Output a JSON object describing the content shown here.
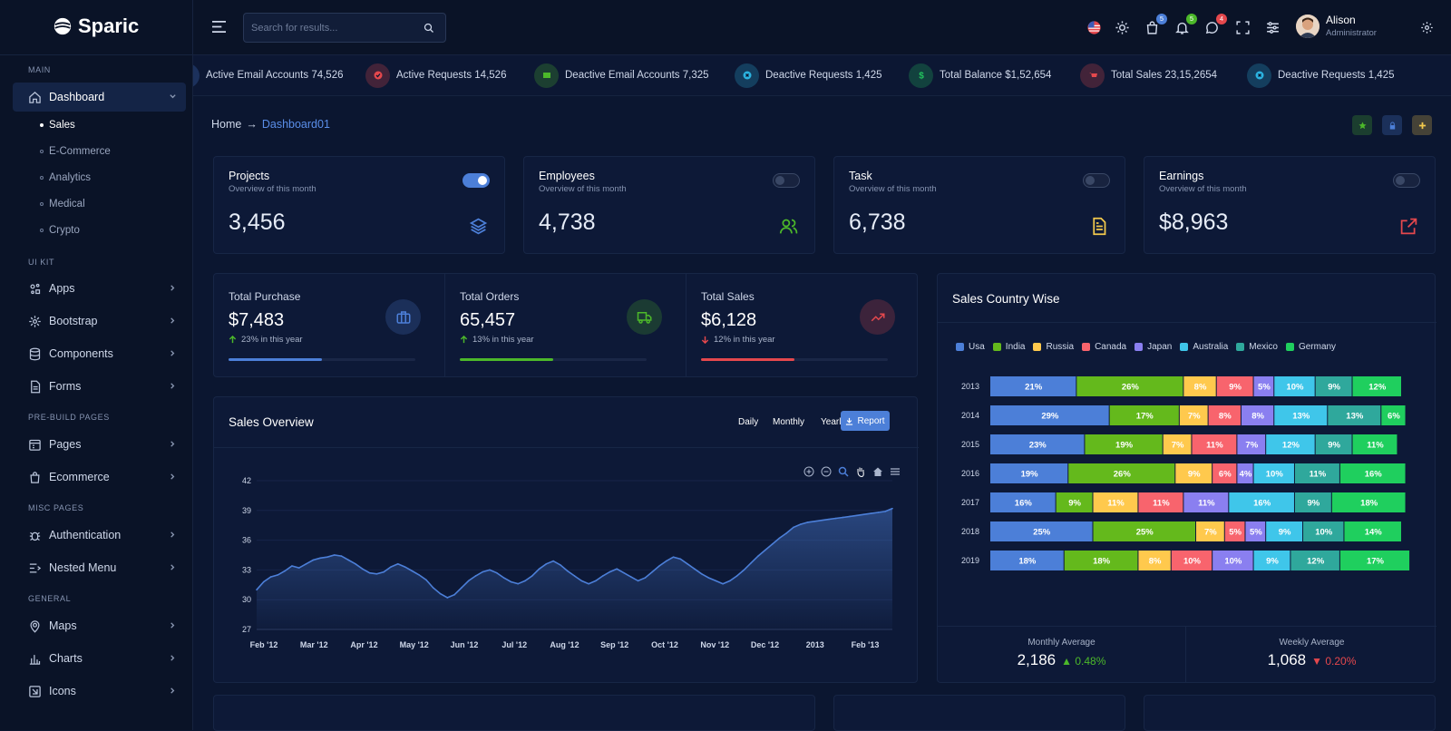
{
  "brand": {
    "name": "Sparic"
  },
  "sidebar": {
    "sections": [
      {
        "label": "MAIN"
      },
      {
        "label": "UI KIT"
      },
      {
        "label": "PRE-BUILD PAGES"
      },
      {
        "label": "MISC PAGES"
      },
      {
        "label": "GENERAL"
      }
    ],
    "dashboard": {
      "label": "Dashboard",
      "icon": "home-icon",
      "subitems": [
        "Sales",
        "E-Commerce",
        "Analytics",
        "Medical",
        "Crypto"
      ]
    },
    "items": [
      {
        "label": "Apps",
        "icon": "apps-icon"
      },
      {
        "label": "Bootstrap",
        "icon": "gear-icon"
      },
      {
        "label": "Components",
        "icon": "database-icon"
      },
      {
        "label": "Forms",
        "icon": "file-icon"
      },
      {
        "label": "Pages",
        "icon": "calendar-icon"
      },
      {
        "label": "Ecommerce",
        "icon": "shopping-bag-icon"
      },
      {
        "label": "Authentication",
        "icon": "bug-icon"
      },
      {
        "label": "Nested Menu",
        "icon": "list-icon"
      },
      {
        "label": "Maps",
        "icon": "map-pin-icon"
      },
      {
        "label": "Charts",
        "icon": "bar-chart-icon"
      },
      {
        "label": "Icons",
        "icon": "icons-icon"
      }
    ]
  },
  "header": {
    "search_placeholder": "Search for results...",
    "badges": {
      "cart": "5",
      "notifications": "5",
      "messages": "4"
    },
    "user": {
      "name": "Alison",
      "role": "Administrator"
    }
  },
  "ticker": [
    {
      "text": "Active Email Accounts 74,526",
      "icon": "mail-icon",
      "color": "#4c7fd8"
    },
    {
      "text": "Active Requests 14,526",
      "icon": "check-circle-icon",
      "color": "#e5484d"
    },
    {
      "text": "Deactive Email Accounts 7,325",
      "icon": "mail-icon",
      "color": "#4cb82a"
    },
    {
      "text": "Deactive Requests 1,425",
      "icon": "x-circle-icon",
      "color": "#2bb3e0"
    },
    {
      "text": "Total Balance $1,52,654",
      "icon": "dollar-icon",
      "color": "#22c55e"
    },
    {
      "text": "Total Sales 23,15,2654",
      "icon": "cart-icon",
      "color": "#e5484d"
    },
    {
      "text": "Deactive Requests 1,425",
      "icon": "x-circle-icon",
      "color": "#2bb3e0"
    }
  ],
  "breadcrumb": {
    "home": "Home",
    "arrow": "→",
    "current": "Dashboard01"
  },
  "kpis": [
    {
      "title": "Projects",
      "subtitle": "Overview of this month",
      "value": "3,456",
      "icon": "layers-icon",
      "color": "#4c7fd8",
      "toggle_on": true
    },
    {
      "title": "Employees",
      "subtitle": "Overview of this month",
      "value": "4,738",
      "icon": "users-icon",
      "color": "#4cb82a",
      "toggle_on": false
    },
    {
      "title": "Task",
      "subtitle": "Overview of this month",
      "value": "6,738",
      "icon": "document-icon",
      "color": "#f2c94c",
      "toggle_on": false
    },
    {
      "title": "Earnings",
      "subtitle": "Overview of this month",
      "value": "$8,963",
      "icon": "external-link-icon",
      "color": "#e5484d",
      "toggle_on": false
    }
  ],
  "stats": [
    {
      "title": "Total Purchase",
      "value": "$7,483",
      "change": "23% in this year",
      "direction": "up",
      "progress": 0.5,
      "color": "#4c7fd8",
      "icon": "briefcase-icon"
    },
    {
      "title": "Total Orders",
      "value": "65,457",
      "change": "13% in this year",
      "direction": "up",
      "progress": 0.5,
      "color": "#4cb82a",
      "icon": "truck-icon"
    },
    {
      "title": "Total Sales",
      "value": "$6,128",
      "change": "12% in this year",
      "direction": "down",
      "progress": 0.5,
      "color": "#e5484d",
      "icon": "trending-up-icon"
    }
  ],
  "sales_overview": {
    "title": "Sales Overview",
    "periods": [
      "Daily",
      "Monthly",
      "Yearly"
    ],
    "report_label": "Report"
  },
  "country": {
    "title": "Sales Country Wise",
    "monthly": {
      "label": "Monthly Average",
      "value": "2,186",
      "change": "0.48%",
      "direction": "up"
    },
    "weekly": {
      "label": "Weekly Average",
      "value": "1,068",
      "change": "0.20%",
      "direction": "down"
    }
  },
  "chart_data": [
    {
      "type": "area",
      "ylim": [
        27,
        42
      ],
      "yticks": [
        27,
        30,
        33,
        36,
        39,
        42
      ],
      "xticks": [
        "Feb '12",
        "Mar '12",
        "Apr '12",
        "May '12",
        "Jun '12",
        "Jul '12",
        "Aug '12",
        "Sep '12",
        "Oct '12",
        "Nov '12",
        "Dec '12",
        "2013",
        "Feb '13"
      ],
      "color": "#4c7fd8",
      "values": [
        31.0,
        31.8,
        32.3,
        32.5,
        32.9,
        33.4,
        33.2,
        33.6,
        34.0,
        34.2,
        34.3,
        34.5,
        34.4,
        34.0,
        33.6,
        33.1,
        32.7,
        32.6,
        32.8,
        33.3,
        33.6,
        33.3,
        32.9,
        32.5,
        32.0,
        31.2,
        30.6,
        30.2,
        30.5,
        31.2,
        31.9,
        32.4,
        32.8,
        33.0,
        32.7,
        32.2,
        31.8,
        31.6,
        31.9,
        32.4,
        33.1,
        33.6,
        33.9,
        33.5,
        32.9,
        32.4,
        31.9,
        31.6,
        31.9,
        32.4,
        32.8,
        33.1,
        32.7,
        32.3,
        31.9,
        32.2,
        32.8,
        33.4,
        33.9,
        34.3,
        34.1,
        33.6,
        33.1,
        32.6,
        32.2,
        31.9,
        31.6,
        31.9,
        32.4,
        33.0,
        33.7,
        34.4,
        35.0,
        35.6,
        36.2,
        36.7,
        37.3,
        37.6,
        37.8,
        37.9,
        38.0,
        38.1,
        38.2,
        38.3,
        38.4,
        38.5,
        38.6,
        38.7,
        38.8,
        38.9,
        39.2
      ]
    },
    {
      "type": "bar",
      "orientation": "horizontal",
      "stacked": true,
      "categories": [
        "2013",
        "2014",
        "2015",
        "2016",
        "2017",
        "2018",
        "2019"
      ],
      "xlim": [
        0,
        100
      ],
      "xticks": [
        0,
        20,
        40,
        60,
        80,
        100
      ],
      "legend": "top-left",
      "series": [
        {
          "name": "Usa",
          "color": "#4c7fd8",
          "values": [
            21,
            29,
            23,
            19,
            16,
            25,
            18
          ]
        },
        {
          "name": "India",
          "color": "#64b91c",
          "values": [
            26,
            17,
            19,
            26,
            9,
            25,
            18
          ]
        },
        {
          "name": "Russia",
          "color": "#ffc94d",
          "values": [
            8,
            7,
            7,
            9,
            11,
            7,
            8
          ]
        },
        {
          "name": "Canada",
          "color": "#f8646d",
          "values": [
            9,
            8,
            11,
            6,
            11,
            5,
            10
          ]
        },
        {
          "name": "Japan",
          "color": "#8a7ff0",
          "values": [
            5,
            8,
            7,
            4,
            11,
            5,
            10
          ]
        },
        {
          "name": "Australia",
          "color": "#3fc6ea",
          "values": [
            10,
            13,
            12,
            10,
            16,
            9,
            9
          ]
        },
        {
          "name": "Mexico",
          "color": "#2fa89c",
          "values": [
            9,
            13,
            9,
            11,
            9,
            10,
            12
          ]
        },
        {
          "name": "Germany",
          "color": "#1fcf5e",
          "values": [
            12,
            6,
            11,
            16,
            18,
            14,
            17
          ]
        }
      ]
    }
  ]
}
